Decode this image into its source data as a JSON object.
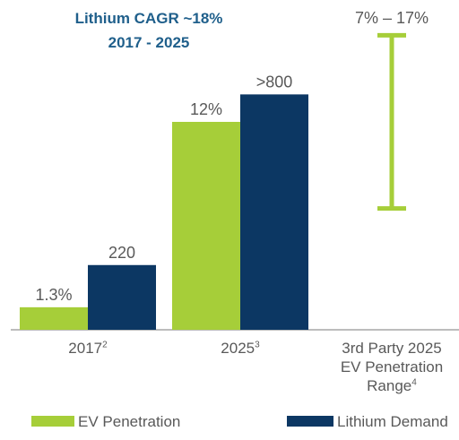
{
  "chart_data": {
    "type": "bar",
    "title": "Lithium CAGR ~18%",
    "subtitle": "2017 - 2025",
    "categories": [
      "2017",
      "2025",
      "3rd Party 2025 EV Penetration Range"
    ],
    "category_notes": [
      "2",
      "3",
      "4"
    ],
    "series": [
      {
        "name": "EV Penetration",
        "color": "#a6ce39",
        "values": [
          1.3,
          12,
          null
        ],
        "value_labels": [
          "1.3%",
          "12%",
          null
        ]
      },
      {
        "name": "Lithium Demand",
        "color": "#0c3763",
        "axis": "y2",
        "values": [
          220,
          800,
          null
        ],
        "value_labels": [
          "220",
          ">800",
          null
        ]
      }
    ],
    "range": {
      "low": 7,
      "high": 17,
      "label": "7% – 17%",
      "color": "#a6ce39"
    },
    "ylim": [
      0,
      18
    ],
    "y2lim": [
      0,
      1060
    ]
  }
}
